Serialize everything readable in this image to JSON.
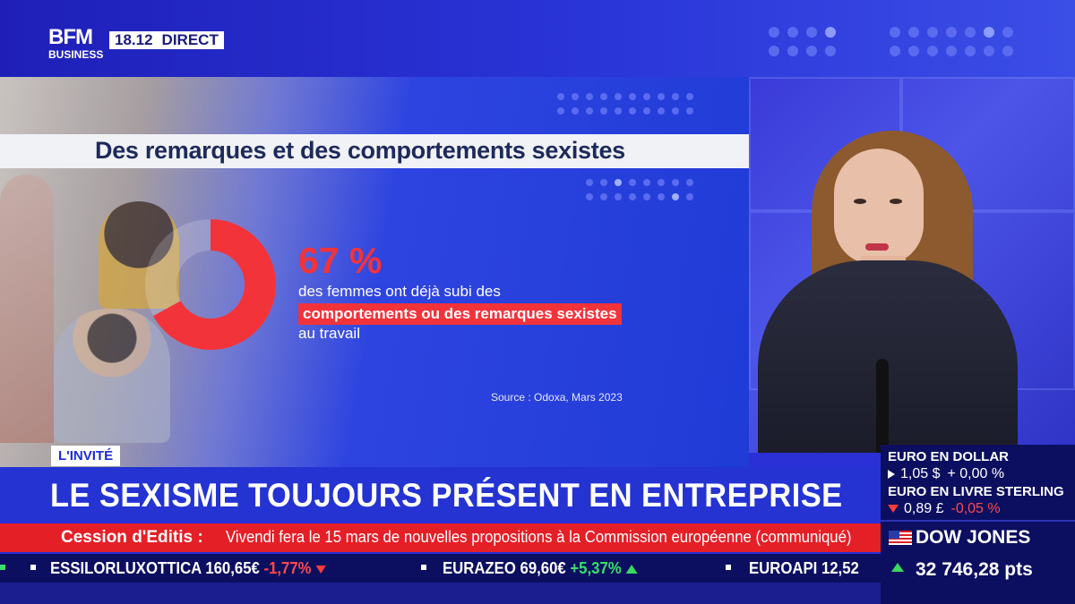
{
  "header": {
    "logo_main": "BFM",
    "logo_sub": "BUSINESS",
    "time": "18.12",
    "live_label": "DIRECT"
  },
  "infographic": {
    "title": "Des remarques et des comportements sexistes",
    "percentage": 67,
    "percentage_label": "67 %",
    "line1": "des femmes ont déjà subi des",
    "highlight": "comportements ou des remarques sexistes",
    "line3": "au travail",
    "source": "Source : Odoxa, Mars 2023",
    "accent_color": "#f2333a"
  },
  "lower_third": {
    "tag": "L'INVITÉ",
    "headline": "LE SEXISME TOUJOURS PRÉSENT EN ENTREPRISE"
  },
  "news_ticker": {
    "label": "Cession d'Editis :",
    "text": "Vivendi fera le 15 mars de nouvelles propositions à la Commission européenne (communiqué)"
  },
  "stock_ticker": [
    {
      "name": "ESSILORLUXOTTICA",
      "price": "160,65€",
      "change": "-1,77%",
      "direction": "down"
    },
    {
      "name": "EURAZEO",
      "price": "69,60€",
      "change": "+5,37%",
      "direction": "up"
    },
    {
      "name": "EUROAPI",
      "price": "12,52",
      "change": "",
      "direction": "none"
    }
  ],
  "market_panel": {
    "fx1_title": "EURO EN DOLLAR",
    "fx1_value": "1,05 $",
    "fx1_change": "+ 0,00 %",
    "fx2_title": "EURO EN LIVRE STERLING",
    "fx2_value": "0,89 £",
    "fx2_change": "-0,05 %",
    "index_name": "DOW JONES",
    "index_value": "32 746,28 pts"
  }
}
